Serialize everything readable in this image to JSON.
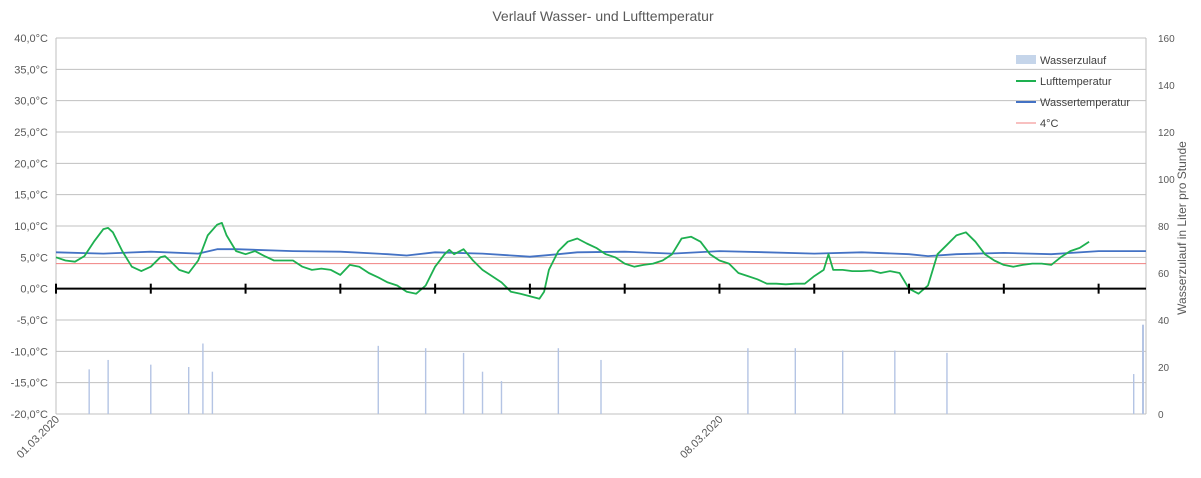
{
  "chart_data": {
    "type": "line",
    "title": "Verlauf Wasser- und Lufttemperatur",
    "y_left": {
      "min": -20,
      "max": 40,
      "step": 5,
      "tick_labels": [
        "-20,0°C",
        "-15,0°C",
        "-10,0°C",
        "-5,0°C",
        "0,0°C",
        "5,0°C",
        "10,0°C",
        "15,0°C",
        "20,0°C",
        "25,0°C",
        "30,0°C",
        "35,0°C",
        "40,0°C"
      ]
    },
    "y_right": {
      "label": "Wasserzulauf in Liter pro Stunde",
      "min": 0,
      "max": 160,
      "step": 20,
      "tick_labels": [
        "0",
        "20",
        "40",
        "60",
        "80",
        "100",
        "120",
        "140",
        "160"
      ]
    },
    "x": {
      "start_day": 0,
      "end_day": 11.5,
      "tick_labels": [
        {
          "day": 0,
          "label": "01.03.2020"
        },
        {
          "day": 7,
          "label": "08.03.2020"
        }
      ]
    },
    "grid": true,
    "legend": {
      "position": "top-right",
      "entries": [
        {
          "label": "Wasserzulauf",
          "type": "area",
          "color": "#c5d5ea"
        },
        {
          "label": "Lufttemperatur",
          "type": "line",
          "color": "#1eb050"
        },
        {
          "label": "Wassertemperatur",
          "type": "line",
          "color": "#4472c4"
        },
        {
          "label": "4°C",
          "type": "line",
          "color": "#f08080"
        }
      ]
    },
    "series": [
      {
        "name": "Lufttemperatur",
        "color": "#1eb050",
        "points": [
          [
            0,
            5
          ],
          [
            0.1,
            4.5
          ],
          [
            0.2,
            4.3
          ],
          [
            0.3,
            5.2
          ],
          [
            0.4,
            7.5
          ],
          [
            0.5,
            9.5
          ],
          [
            0.55,
            9.7
          ],
          [
            0.6,
            9
          ],
          [
            0.7,
            6
          ],
          [
            0.8,
            3.5
          ],
          [
            0.9,
            2.8
          ],
          [
            1,
            3.5
          ],
          [
            1.1,
            5
          ],
          [
            1.15,
            5.2
          ],
          [
            1.2,
            4.5
          ],
          [
            1.3,
            3
          ],
          [
            1.4,
            2.5
          ],
          [
            1.5,
            4.5
          ],
          [
            1.6,
            8.5
          ],
          [
            1.7,
            10.2
          ],
          [
            1.75,
            10.5
          ],
          [
            1.8,
            8.5
          ],
          [
            1.9,
            6
          ],
          [
            2,
            5.5
          ],
          [
            2.1,
            6
          ],
          [
            2.2,
            5.2
          ],
          [
            2.3,
            4.5
          ],
          [
            2.4,
            4.5
          ],
          [
            2.5,
            4.5
          ],
          [
            2.6,
            3.5
          ],
          [
            2.7,
            3
          ],
          [
            2.8,
            3.2
          ],
          [
            2.9,
            3
          ],
          [
            3,
            2.2
          ],
          [
            3.1,
            3.8
          ],
          [
            3.2,
            3.5
          ],
          [
            3.3,
            2.5
          ],
          [
            3.4,
            1.8
          ],
          [
            3.5,
            1
          ],
          [
            3.6,
            0.5
          ],
          [
            3.7,
            -0.5
          ],
          [
            3.8,
            -0.8
          ],
          [
            3.9,
            0.5
          ],
          [
            4,
            3.5
          ],
          [
            4.1,
            5.5
          ],
          [
            4.15,
            6.2
          ],
          [
            4.2,
            5.5
          ],
          [
            4.3,
            6.3
          ],
          [
            4.4,
            4.5
          ],
          [
            4.5,
            3
          ],
          [
            4.6,
            2
          ],
          [
            4.7,
            1
          ],
          [
            4.8,
            -0.5
          ],
          [
            4.9,
            -0.8
          ],
          [
            5,
            -1.2
          ],
          [
            5.1,
            -1.6
          ],
          [
            5.15,
            -0.5
          ],
          [
            5.2,
            3
          ],
          [
            5.3,
            6
          ],
          [
            5.4,
            7.5
          ],
          [
            5.5,
            8
          ],
          [
            5.6,
            7.2
          ],
          [
            5.7,
            6.5
          ],
          [
            5.8,
            5.5
          ],
          [
            5.9,
            5
          ],
          [
            6,
            4
          ],
          [
            6.1,
            3.5
          ],
          [
            6.2,
            3.8
          ],
          [
            6.3,
            4
          ],
          [
            6.4,
            4.5
          ],
          [
            6.5,
            5.5
          ],
          [
            6.6,
            8
          ],
          [
            6.7,
            8.3
          ],
          [
            6.8,
            7.5
          ],
          [
            6.9,
            5.5
          ],
          [
            7,
            4.5
          ],
          [
            7.1,
            4
          ],
          [
            7.2,
            2.5
          ],
          [
            7.3,
            2
          ],
          [
            7.4,
            1.5
          ],
          [
            7.5,
            0.8
          ],
          [
            7.6,
            0.8
          ],
          [
            7.7,
            0.7
          ],
          [
            7.8,
            0.8
          ],
          [
            7.9,
            0.8
          ],
          [
            8,
            2
          ],
          [
            8.1,
            3
          ],
          [
            8.15,
            5.5
          ],
          [
            8.2,
            3
          ],
          [
            8.3,
            3
          ],
          [
            8.4,
            2.8
          ],
          [
            8.5,
            2.8
          ],
          [
            8.6,
            2.9
          ],
          [
            8.7,
            2.5
          ],
          [
            8.8,
            2.8
          ],
          [
            8.9,
            2.5
          ],
          [
            9,
            0
          ],
          [
            9.1,
            -0.8
          ],
          [
            9.2,
            0.5
          ],
          [
            9.3,
            5.5
          ],
          [
            9.4,
            7
          ],
          [
            9.5,
            8.5
          ],
          [
            9.6,
            9
          ],
          [
            9.7,
            7.5
          ],
          [
            9.8,
            5.5
          ],
          [
            9.9,
            4.5
          ],
          [
            10,
            3.8
          ],
          [
            10.1,
            3.5
          ],
          [
            10.2,
            3.8
          ],
          [
            10.3,
            4
          ],
          [
            10.4,
            4
          ],
          [
            10.5,
            3.8
          ],
          [
            10.6,
            5
          ],
          [
            10.7,
            6
          ],
          [
            10.8,
            6.5
          ],
          [
            10.9,
            7.5
          ]
        ]
      },
      {
        "name": "Wassertemperatur",
        "color": "#4472c4",
        "points": [
          [
            0,
            5.8
          ],
          [
            0.5,
            5.6
          ],
          [
            1,
            5.9
          ],
          [
            1.5,
            5.6
          ],
          [
            1.7,
            6.3
          ],
          [
            1.9,
            6.3
          ],
          [
            2.5,
            6
          ],
          [
            3,
            5.9
          ],
          [
            3.5,
            5.5
          ],
          [
            3.7,
            5.3
          ],
          [
            4,
            5.8
          ],
          [
            4.5,
            5.6
          ],
          [
            5,
            5.1
          ],
          [
            5.3,
            5.5
          ],
          [
            5.5,
            5.8
          ],
          [
            6,
            5.9
          ],
          [
            6.5,
            5.6
          ],
          [
            7,
            6
          ],
          [
            7.5,
            5.8
          ],
          [
            8,
            5.6
          ],
          [
            8.5,
            5.8
          ],
          [
            9,
            5.5
          ],
          [
            9.2,
            5.2
          ],
          [
            9.5,
            5.5
          ],
          [
            10,
            5.7
          ],
          [
            10.5,
            5.5
          ],
          [
            11,
            6
          ],
          [
            11.5,
            6
          ]
        ]
      },
      {
        "name": "4°C",
        "color": "#f08080",
        "points": [
          [
            0,
            4
          ],
          [
            11.5,
            4
          ]
        ]
      }
    ],
    "wasserzulauf": {
      "name": "Wasserzulauf",
      "color": "#c5d5ea",
      "unit": "Liter pro Stunde",
      "spikes": [
        [
          0.35,
          19
        ],
        [
          0.55,
          23
        ],
        [
          1.0,
          21
        ],
        [
          1.4,
          20
        ],
        [
          1.55,
          30
        ],
        [
          1.65,
          18
        ],
        [
          3.4,
          29
        ],
        [
          3.9,
          28
        ],
        [
          4.3,
          26
        ],
        [
          4.5,
          18
        ],
        [
          4.7,
          14
        ],
        [
          5.3,
          28
        ],
        [
          5.75,
          23
        ],
        [
          7.3,
          28
        ],
        [
          7.8,
          28
        ],
        [
          8.3,
          27
        ],
        [
          8.85,
          27
        ],
        [
          9.4,
          26
        ]
      ]
    }
  }
}
